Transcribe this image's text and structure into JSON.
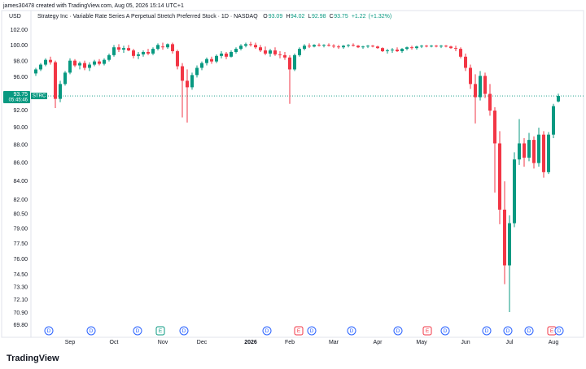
{
  "caption": "james30478 created with TradingView.com, Aug 05, 2026 15:14 UTC+1",
  "watermark": "TradingView",
  "chart_data": {
    "type": "candlestick",
    "title": "Strategy Inc · Variable Rate Series A Perpetual Stretch Preferred Stock · 1D · NASDAQ",
    "currency": "USD",
    "symbol": "STRC",
    "countdown": "05:45:46",
    "ohlc_legend": [
      {
        "label": "O",
        "value": 93.09
      },
      {
        "label": "H",
        "value": 94.02
      },
      {
        "label": "L",
        "value": 92.98
      },
      {
        "label": "C",
        "value": 93.75
      }
    ],
    "change": {
      "value": 1.22,
      "label": "+1.22"
    },
    "change_pct": {
      "value": 1.32,
      "label": "(+1.32%)"
    },
    "log_scale": true,
    "grid": false,
    "up_color": "#089981",
    "down_color": "#f23645",
    "ylim": [
      69.1,
      103
    ],
    "yticks": [
      {
        "value": 102,
        "label": "102.00"
      },
      {
        "value": 100,
        "label": "100.00"
      },
      {
        "value": 98,
        "label": "98.00"
      },
      {
        "value": 96,
        "label": "96.00"
      },
      {
        "value": 92,
        "label": "92.00"
      },
      {
        "value": 90,
        "label": "90.00"
      },
      {
        "value": 88,
        "label": "88.00"
      },
      {
        "value": 86,
        "label": "86.00"
      },
      {
        "value": 84,
        "label": "84.00"
      },
      {
        "value": 82,
        "label": "82.00"
      },
      {
        "value": 80.5,
        "label": "80.50"
      },
      {
        "value": 79,
        "label": "79.00"
      },
      {
        "value": 77.5,
        "label": "77.50"
      },
      {
        "value": 76,
        "label": "76.00"
      },
      {
        "value": 74.5,
        "label": "74.50"
      },
      {
        "value": 73.3,
        "label": "73.30"
      },
      {
        "value": 72.1,
        "label": "72.10"
      },
      {
        "value": 70.9,
        "label": "70.90"
      },
      {
        "value": 69.8,
        "label": "69.80"
      }
    ],
    "categories": [
      null,
      null,
      null,
      null,
      null,
      null,
      null,
      "Sep",
      null,
      null,
      null,
      null,
      null,
      null,
      null,
      null,
      "Oct",
      null,
      null,
      null,
      null,
      null,
      null,
      null,
      null,
      null,
      "Nov",
      null,
      null,
      null,
      null,
      null,
      null,
      null,
      "Dec",
      null,
      null,
      null,
      null,
      null,
      null,
      null,
      null,
      null,
      "2026",
      null,
      null,
      null,
      null,
      null,
      null,
      null,
      "Feb",
      null,
      null,
      null,
      null,
      null,
      null,
      null,
      null,
      "Mar",
      null,
      null,
      null,
      null,
      null,
      null,
      null,
      null,
      "Apr",
      null,
      null,
      null,
      null,
      null,
      null,
      null,
      null,
      "May",
      null,
      null,
      null,
      null,
      null,
      null,
      null,
      null,
      "Jun",
      null,
      null,
      null,
      null,
      null,
      null,
      null,
      null,
      "Jul",
      null,
      null,
      null,
      null,
      null,
      null,
      null,
      null,
      "Aug",
      null
    ],
    "open": [
      96.5,
      97.0,
      97.6,
      98.2,
      97.9,
      93.4,
      95.2,
      96.6,
      98.1,
      97.5,
      97.8,
      97.2,
      97.6,
      98.0,
      97.7,
      98.2,
      98.8,
      99.8,
      99.5,
      99.7,
      99.4,
      98.7,
      98.9,
      99.2,
      99.0,
      99.6,
      99.9,
      99.8,
      100.2,
      99.3,
      97.4,
      95.6,
      94.8,
      96.3,
      97.2,
      97.8,
      98.3,
      98.0,
      98.7,
      99.0,
      98.6,
      99.2,
      99.6,
      100.0,
      100.2,
      100.1,
      99.8,
      99.4,
      99.0,
      99.4,
      98.9,
      98.8,
      98.5,
      97.0,
      98.8,
      99.6,
      100.0,
      99.9,
      100.1,
      100.0,
      100.1,
      100.0,
      99.9,
      99.8,
      100.0,
      100.1,
      100.0,
      99.8,
      99.9,
      100.0,
      99.9,
      99.7,
      99.3,
      99.4,
      99.5,
      99.3,
      99.6,
      99.8,
      99.7,
      99.9,
      100.0,
      99.9,
      100.0,
      99.9,
      100.0,
      99.9,
      99.7,
      99.6,
      98.6,
      97.2,
      95.2,
      93.6,
      96.2,
      94.0,
      92.0,
      88.2,
      81.0,
      75.4,
      79.6,
      86.4,
      88.2,
      86.6,
      88.6,
      86.0,
      89.2,
      85.0,
      89.2,
      93.09
    ],
    "high": [
      97.2,
      97.8,
      98.4,
      98.6,
      98.1,
      95.6,
      96.8,
      98.4,
      98.3,
      98.0,
      98.1,
      97.9,
      98.2,
      98.3,
      98.4,
      99.0,
      100.1,
      100.2,
      100.0,
      100.1,
      99.6,
      99.2,
      99.4,
      99.6,
      99.8,
      100.3,
      100.4,
      100.3,
      100.4,
      99.5,
      97.8,
      97.0,
      96.6,
      97.5,
      98.0,
      98.5,
      98.6,
      98.9,
      99.3,
      99.2,
      99.4,
      99.8,
      100.2,
      100.4,
      100.5,
      100.4,
      100.1,
      99.9,
      99.6,
      99.8,
      99.3,
      99.2,
      98.8,
      99.0,
      99.8,
      100.2,
      100.3,
      100.2,
      100.3,
      100.2,
      100.3,
      100.2,
      100.1,
      100.1,
      100.2,
      100.3,
      100.1,
      100.0,
      100.1,
      100.1,
      100.0,
      99.8,
      99.6,
      99.7,
      99.8,
      99.7,
      99.9,
      100.0,
      100.0,
      100.1,
      100.1,
      100.1,
      100.1,
      100.1,
      100.1,
      100.0,
      100.0,
      99.8,
      99.0,
      97.6,
      96.4,
      96.8,
      96.6,
      95.2,
      92.4,
      89.6,
      84.0,
      80.4,
      87.2,
      91.0,
      88.8,
      89.4,
      89.0,
      90.0,
      89.6,
      89.5,
      92.8,
      94.02
    ],
    "low": [
      96.2,
      96.8,
      97.4,
      97.6,
      92.3,
      93.0,
      95.0,
      96.4,
      97.3,
      97.0,
      96.9,
      96.8,
      97.4,
      97.5,
      97.5,
      98.0,
      98.6,
      99.2,
      99.1,
      99.3,
      98.4,
      98.3,
      98.6,
      98.8,
      98.8,
      99.4,
      99.5,
      99.6,
      99.0,
      97.0,
      91.2,
      90.6,
      94.5,
      96.0,
      96.9,
      97.5,
      97.7,
      97.8,
      98.4,
      98.3,
      98.5,
      99.0,
      99.4,
      99.8,
      99.9,
      99.6,
      99.2,
      98.8,
      98.6,
      98.7,
      98.4,
      98.2,
      92.8,
      96.8,
      98.6,
      99.4,
      99.7,
      99.8,
      99.9,
      99.8,
      99.9,
      99.7,
      99.6,
      99.6,
      99.8,
      99.9,
      99.7,
      99.6,
      99.7,
      99.8,
      99.6,
      99.2,
      99.0,
      99.1,
      99.2,
      99.1,
      99.4,
      99.5,
      99.5,
      99.7,
      99.8,
      99.8,
      99.8,
      99.7,
      99.8,
      99.6,
      99.3,
      98.4,
      96.8,
      94.6,
      90.5,
      93.2,
      93.5,
      91.4,
      82.8,
      79.5,
      73.6,
      71.0,
      79.2,
      85.8,
      85.6,
      86.2,
      85.4,
      85.6,
      84.4,
      84.8,
      88.8,
      92.98
    ],
    "close": [
      97.0,
      97.6,
      98.2,
      97.9,
      93.4,
      95.2,
      96.6,
      98.1,
      97.5,
      97.8,
      97.2,
      97.6,
      98.0,
      97.7,
      98.2,
      98.8,
      99.8,
      99.5,
      99.7,
      99.4,
      98.7,
      98.9,
      99.2,
      99.0,
      99.6,
      100.1,
      99.8,
      100.2,
      99.3,
      97.4,
      95.6,
      94.8,
      96.3,
      97.2,
      97.8,
      98.3,
      98.0,
      98.7,
      99.0,
      98.6,
      99.2,
      99.6,
      100.0,
      100.2,
      100.1,
      99.8,
      99.4,
      99.0,
      99.4,
      98.9,
      98.8,
      98.5,
      97.0,
      98.8,
      99.6,
      100.0,
      99.9,
      100.1,
      100.0,
      100.1,
      100.0,
      99.9,
      99.8,
      100.0,
      100.1,
      100.0,
      99.8,
      99.9,
      100.0,
      99.9,
      99.7,
      99.3,
      99.4,
      99.5,
      99.3,
      99.6,
      99.8,
      99.7,
      99.9,
      100.0,
      99.9,
      100.0,
      99.9,
      100.0,
      99.9,
      99.7,
      99.6,
      98.6,
      97.2,
      95.2,
      93.6,
      96.2,
      94.0,
      92.0,
      88.2,
      81.0,
      75.4,
      79.6,
      86.4,
      88.2,
      86.6,
      88.6,
      86.0,
      89.2,
      85.0,
      89.2,
      92.53,
      93.75
    ],
    "events": [
      {
        "label": "D"
      },
      {
        "label": "D"
      },
      {
        "label": "D"
      },
      {
        "label": "E"
      },
      {
        "label": "D"
      },
      {
        "label": "D"
      },
      {
        "label": "E"
      },
      {
        "label": "D"
      },
      {
        "label": "D"
      },
      {
        "label": "D"
      },
      {
        "label": "E"
      },
      {
        "label": "D"
      },
      {
        "label": "D"
      },
      {
        "label": "D"
      },
      {
        "label": "D"
      },
      {
        "label": "E"
      },
      {
        "label": "D"
      }
    ]
  }
}
